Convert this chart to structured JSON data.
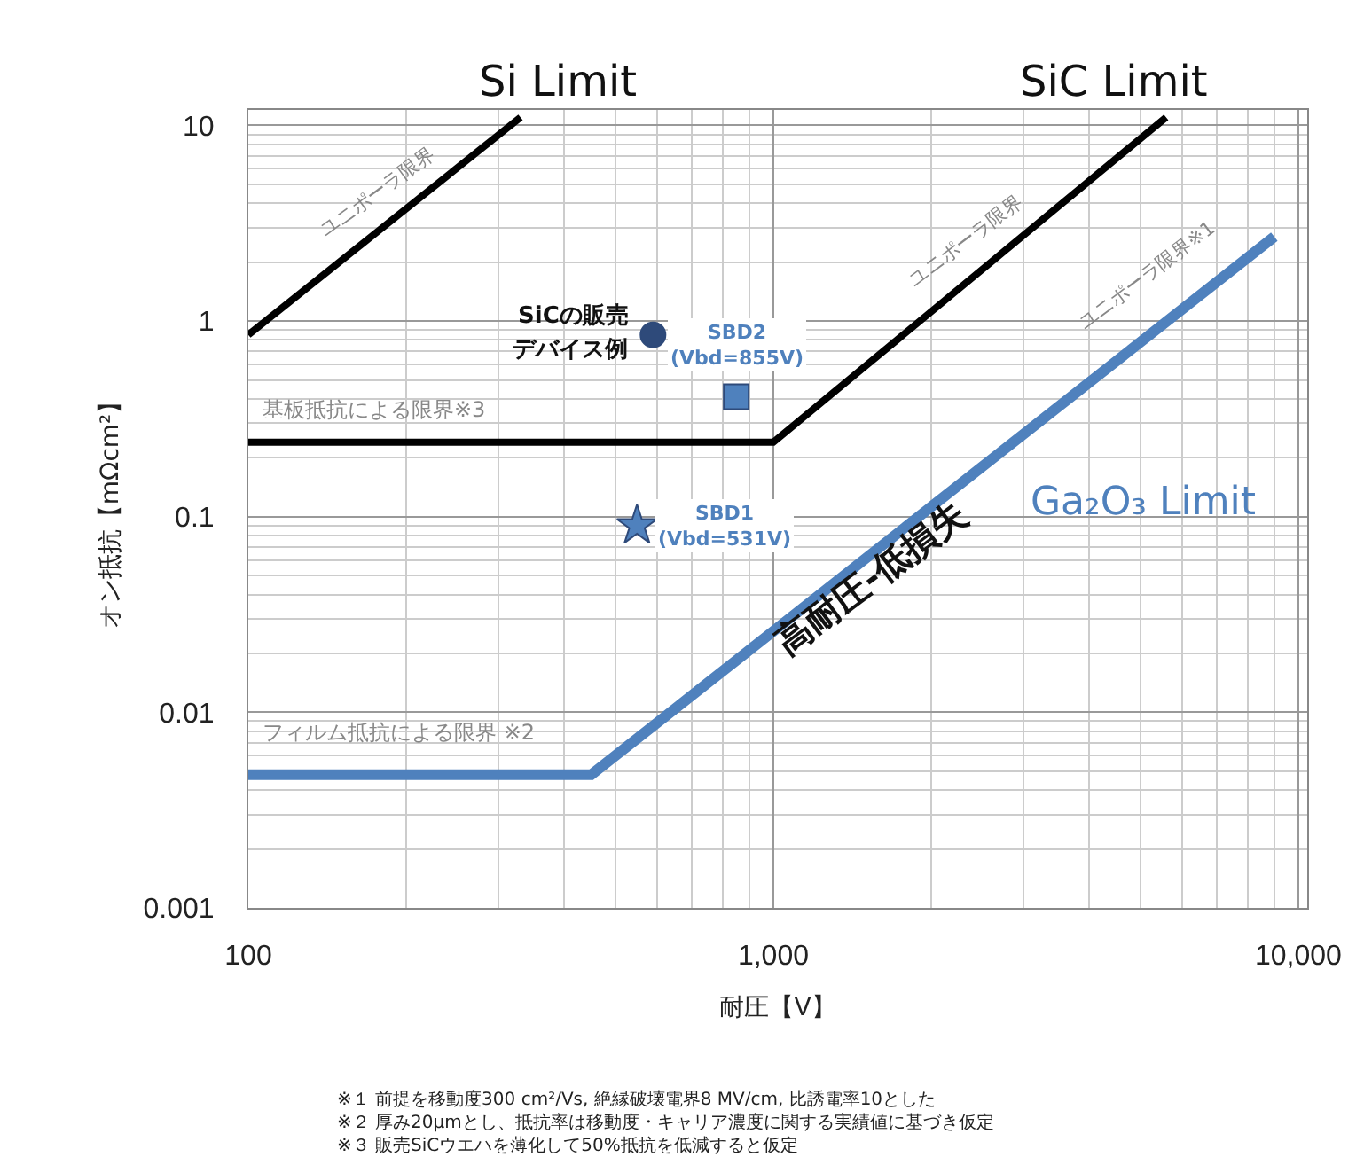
{
  "chart_data": {
    "type": "line",
    "xlabel": "耐圧【V】",
    "ylabel": "オン抵抗【mΩcm²】",
    "log": "xy",
    "grid": true,
    "legend": false,
    "marker": "none",
    "line_style": "solid",
    "xlim": [
      100,
      10400
    ],
    "ylim": [
      0.001,
      12
    ],
    "xticks": [
      100,
      {
        "value": 1000,
        "label": "1,000"
      },
      {
        "value": 10000,
        "label": "10,000"
      }
    ],
    "yticks": [
      0.001,
      0.01,
      0.1,
      1,
      10
    ],
    "series": [
      {
        "name": "Si Limit",
        "color": "#000000",
        "x": [
          100,
          330
        ],
        "values": [
          0.85,
          11
        ]
      },
      {
        "name": "SiC Limit",
        "color": "#000000",
        "x": [
          100,
          1000,
          5600
        ],
        "values": [
          0.24,
          0.24,
          11
        ]
      },
      {
        "name": "Ga₂O₃ Limit",
        "color": "#4f81bd",
        "x": [
          100,
          450,
          9000
        ],
        "values": [
          0.0048,
          0.0048,
          2.7
        ]
      },
      {
        "type": "scatter",
        "marker": "circle",
        "color": "#2e4a7a",
        "x": [
          590
        ],
        "values": [
          0.85
        ]
      },
      {
        "type": "scatter",
        "marker": "square",
        "color": "#4f81bd",
        "x": [
          850
        ],
        "values": [
          0.41
        ]
      },
      {
        "type": "scatter",
        "marker": "star",
        "color": "#4f81bd",
        "x": [
          550
        ],
        "values": [
          0.09
        ]
      }
    ],
    "annotations": [
      "ユニポーラ限界",
      "ユニポーラ限界",
      "ユニポーラ限界※1",
      "基板抵抗による限界※3",
      "フィルム抵抗による限界 ※2",
      {
        "text": "SiCの販売",
        "x": 590,
        "y": 0.85
      },
      {
        "text": "デバイス例",
        "x": 590,
        "y": 0.85
      },
      {
        "text": "SBD2\n(Vbd=855V)",
        "x": 850,
        "y": 0.41
      },
      {
        "text": "SBD1\n(Vbd=531V)",
        "x": 550,
        "y": 0.09
      },
      "高耐圧-低損失",
      "※１ 前提を移動度300 cm²/Vs, 絶縁破壊電界8 MV/cm, 比誘電率10とした\n※２ 厚み20μmとし、抵抗率は移動度・キャリア濃度に関する実績値に基づき仮定\n※３ 販売SiCウエハを薄化して50%抵抗を低減すると仮定"
    ]
  }
}
